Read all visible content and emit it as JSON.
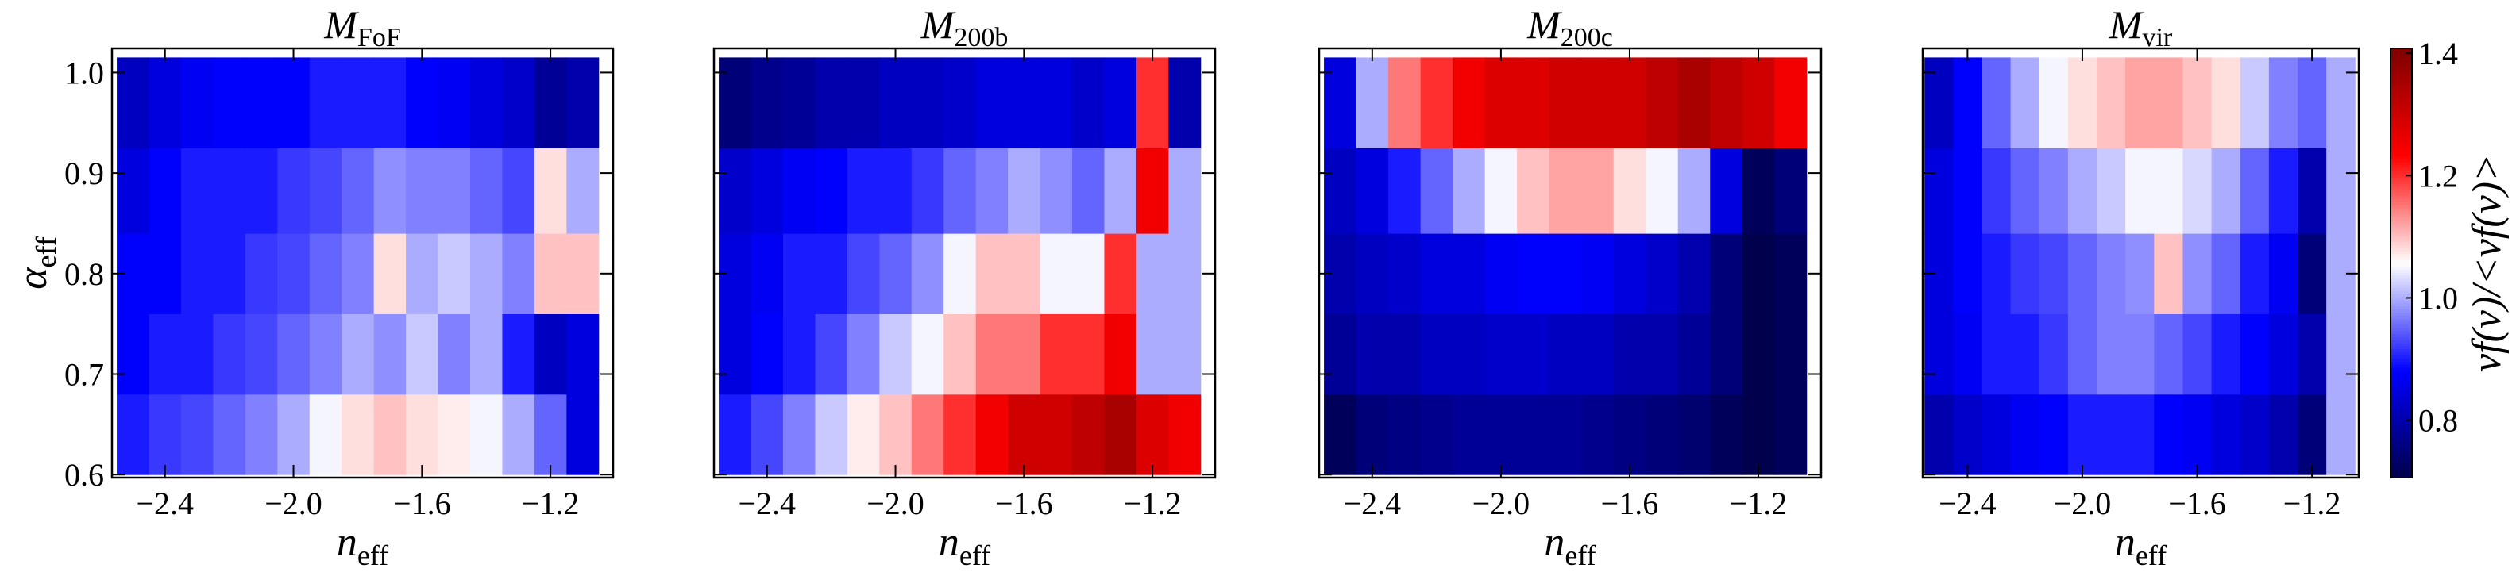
{
  "chart_data": [
    {
      "type": "heatmap",
      "title": "M",
      "title_sub": "FoF",
      "xlabel": "n",
      "xlabel_sub": "eff",
      "ylabel": "α",
      "ylabel_sub": "eff",
      "x": [
        -2.5,
        -2.4,
        -2.3,
        -2.2,
        -2.1,
        -2.0,
        -1.9,
        -1.8,
        -1.7,
        -1.6,
        -1.5,
        -1.4,
        -1.3,
        -1.2,
        -1.1
      ],
      "y": [
        0.64,
        0.72,
        0.8,
        0.88,
        0.97
      ],
      "z": [
        [
          0.9,
          0.92,
          0.93,
          0.95,
          0.97,
          1.0,
          1.05,
          1.08,
          1.1,
          1.08,
          1.07,
          1.05,
          1.0,
          0.95,
          0.85
        ],
        [
          0.88,
          0.9,
          0.9,
          0.92,
          0.93,
          0.95,
          0.97,
          1.0,
          0.98,
          1.02,
          0.97,
          1.0,
          0.9,
          0.82,
          0.85
        ],
        [
          0.88,
          0.88,
          0.9,
          0.9,
          0.92,
          0.93,
          0.95,
          0.97,
          1.08,
          1.0,
          1.02,
          1.0,
          0.97,
          1.1,
          1.1
        ],
        [
          0.85,
          0.88,
          0.9,
          0.9,
          0.9,
          0.92,
          0.93,
          0.95,
          0.98,
          0.97,
          0.97,
          0.95,
          0.93,
          1.08,
          1.0
        ],
        [
          0.82,
          0.85,
          0.87,
          0.88,
          0.88,
          0.88,
          0.9,
          0.9,
          0.9,
          0.88,
          0.87,
          0.85,
          0.83,
          0.78,
          0.8
        ]
      ],
      "xlim": [
        -2.565,
        -1.005
      ],
      "ylim": [
        0.597,
        1.024
      ],
      "xticks": [
        {
          "value": -2.4,
          "label": "−2.4"
        },
        {
          "value": -2.0,
          "label": "−2.0"
        },
        {
          "value": -1.6,
          "label": "−1.6"
        },
        {
          "value": -1.2,
          "label": "−1.2"
        }
      ],
      "yticks": [
        0.6,
        0.7,
        0.8,
        0.9,
        {
          "value": 1,
          "label": "1.0"
        }
      ],
      "ytick_labels": true
    },
    {
      "type": "heatmap",
      "title": "M",
      "title_sub": "200b",
      "xlabel": "n",
      "xlabel_sub": "eff",
      "x": [
        -2.5,
        -2.4,
        -2.3,
        -2.2,
        -2.1,
        -2.0,
        -1.9,
        -1.8,
        -1.7,
        -1.6,
        -1.5,
        -1.4,
        -1.3,
        -1.2,
        -1.1
      ],
      "y": [
        0.64,
        0.72,
        0.8,
        0.88,
        0.97
      ],
      "z": [
        [
          0.9,
          0.93,
          0.97,
          1.02,
          1.07,
          1.1,
          1.15,
          1.2,
          1.25,
          1.3,
          1.3,
          1.32,
          1.35,
          1.28,
          1.25
        ],
        [
          0.85,
          0.88,
          0.9,
          0.93,
          0.97,
          1.02,
          1.05,
          1.1,
          1.15,
          1.15,
          1.2,
          1.2,
          1.25,
          1.0,
          1.0
        ],
        [
          0.85,
          0.87,
          0.9,
          0.9,
          0.93,
          0.95,
          0.98,
          1.05,
          1.1,
          1.1,
          1.05,
          1.05,
          1.2,
          1.0,
          1.0
        ],
        [
          0.83,
          0.85,
          0.87,
          0.88,
          0.9,
          0.9,
          0.92,
          0.95,
          0.97,
          1.0,
          0.98,
          0.95,
          1.0,
          1.25,
          1.0
        ],
        [
          0.75,
          0.77,
          0.78,
          0.8,
          0.8,
          0.82,
          0.82,
          0.83,
          0.85,
          0.85,
          0.85,
          0.83,
          0.85,
          1.2,
          0.8
        ]
      ],
      "xlim": [
        -2.565,
        -1.005
      ],
      "ylim": [
        0.597,
        1.024
      ],
      "xticks": [
        {
          "value": -2.4,
          "label": "−2.4"
        },
        {
          "value": -2.0,
          "label": "−2.0"
        },
        {
          "value": -1.6,
          "label": "−1.6"
        },
        {
          "value": -1.2,
          "label": "−1.2"
        }
      ],
      "yticks": [
        0.6,
        0.7,
        0.8,
        0.9,
        1
      ],
      "ytick_labels": false
    },
    {
      "type": "heatmap",
      "title": "M",
      "title_sub": "200c",
      "xlabel": "n",
      "xlabel_sub": "eff",
      "x": [
        -2.5,
        -2.4,
        -2.3,
        -2.2,
        -2.1,
        -2.0,
        -1.9,
        -1.8,
        -1.7,
        -1.6,
        -1.5,
        -1.4,
        -1.3,
        -1.2,
        -1.1
      ],
      "y": [
        0.64,
        0.72,
        0.8,
        0.88,
        0.97
      ],
      "z": [
        [
          0.72,
          0.75,
          0.76,
          0.77,
          0.78,
          0.78,
          0.78,
          0.78,
          0.77,
          0.76,
          0.75,
          0.74,
          0.72,
          0.7,
          0.72
        ],
        [
          0.78,
          0.8,
          0.8,
          0.82,
          0.82,
          0.83,
          0.83,
          0.82,
          0.82,
          0.8,
          0.8,
          0.78,
          0.75,
          0.7,
          0.72
        ],
        [
          0.8,
          0.82,
          0.83,
          0.85,
          0.85,
          0.87,
          0.88,
          0.88,
          0.87,
          0.85,
          0.83,
          0.8,
          0.75,
          0.7,
          0.72
        ],
        [
          0.82,
          0.85,
          0.9,
          0.95,
          1.0,
          1.05,
          1.1,
          1.12,
          1.12,
          1.08,
          1.05,
          1.0,
          0.85,
          0.72,
          0.75
        ],
        [
          0.85,
          1.0,
          1.15,
          1.2,
          1.25,
          1.28,
          1.28,
          1.3,
          1.3,
          1.3,
          1.32,
          1.35,
          1.32,
          1.3,
          1.25
        ]
      ],
      "xlim": [
        -2.565,
        -1.005
      ],
      "ylim": [
        0.597,
        1.024
      ],
      "xticks": [
        {
          "value": -2.4,
          "label": "−2.4"
        },
        {
          "value": -2.0,
          "label": "−2.0"
        },
        {
          "value": -1.6,
          "label": "−1.6"
        },
        {
          "value": -1.2,
          "label": "−1.2"
        }
      ],
      "yticks": [
        0.6,
        0.7,
        0.8,
        0.9,
        1
      ],
      "ytick_labels": false
    },
    {
      "type": "heatmap",
      "title": "M",
      "title_sub": "vir",
      "xlabel": "n",
      "xlabel_sub": "eff",
      "x": [
        -2.5,
        -2.4,
        -2.3,
        -2.2,
        -2.1,
        -2.0,
        -1.9,
        -1.8,
        -1.7,
        -1.6,
        -1.5,
        -1.4,
        -1.3,
        -1.2,
        -1.1
      ],
      "y": [
        0.64,
        0.72,
        0.8,
        0.88,
        0.97
      ],
      "z": [
        [
          0.8,
          0.83,
          0.85,
          0.87,
          0.88,
          0.9,
          0.9,
          0.9,
          0.88,
          0.87,
          0.85,
          0.83,
          0.8,
          0.75,
          1.0
        ],
        [
          0.85,
          0.87,
          0.9,
          0.9,
          0.92,
          0.95,
          0.97,
          0.97,
          0.95,
          0.93,
          0.9,
          0.88,
          0.85,
          0.8,
          1.0
        ],
        [
          0.85,
          0.88,
          0.9,
          0.92,
          0.93,
          0.95,
          0.97,
          0.98,
          1.1,
          0.98,
          0.95,
          0.9,
          0.87,
          0.75,
          1.0
        ],
        [
          0.85,
          0.88,
          0.92,
          0.95,
          0.97,
          1.0,
          1.02,
          1.05,
          1.05,
          1.03,
          1.0,
          0.95,
          0.9,
          0.8,
          1.0
        ],
        [
          0.82,
          0.88,
          0.95,
          1.0,
          1.05,
          1.08,
          1.1,
          1.12,
          1.12,
          1.1,
          1.08,
          1.02,
          0.97,
          0.95,
          1.0
        ]
      ],
      "xlim": [
        -2.556,
        -1.037
      ],
      "ylim": [
        0.597,
        1.024
      ],
      "xticks": [
        {
          "value": -2.4,
          "label": "−2.4"
        },
        {
          "value": -2.0,
          "label": "−2.0"
        },
        {
          "value": -1.6,
          "label": "−1.6"
        },
        {
          "value": -1.2,
          "label": "−1.2"
        }
      ],
      "yticks": [
        0.6,
        0.7,
        0.8,
        0.9,
        1
      ],
      "ytick_labels": false
    },
    {
      "type": "colorbar",
      "label": "νf(ν)/<νf(ν)>",
      "zlim": [
        0.706,
        1.408
      ],
      "zticks": [
        0.8,
        {
          "value": 1,
          "label": "1.0"
        },
        1.2,
        1.4
      ],
      "colors": [
        "#00004c",
        "#0000ff",
        "#ffffff",
        "#ff0000",
        "#7f0000"
      ]
    }
  ]
}
